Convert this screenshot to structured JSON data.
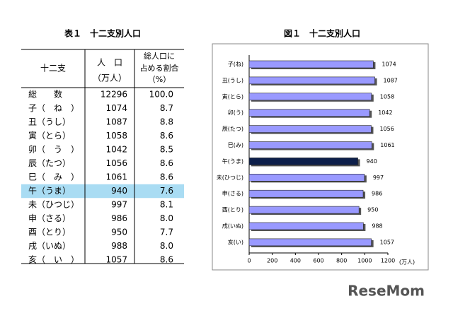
{
  "table": {
    "title": "表１　十二支別人口",
    "headers": [
      "十二支",
      "人　口",
      "（万人）",
      "総人口に",
      "占める割合",
      "（%）"
    ],
    "highlighted_row": 7,
    "rows": [
      [
        "総　　数",
        "12296",
        "100.0"
      ],
      [
        "子（　ね　）",
        "1074",
        "8.7"
      ],
      [
        "丑（うし）",
        "1087",
        "8.8"
      ],
      [
        "寅（とら）",
        "1058",
        "8.6"
      ],
      [
        "卯（　う　）",
        "1042",
        "8.5"
      ],
      [
        "辰（たつ）",
        "1056",
        "8.6"
      ],
      [
        "巳（　み　）",
        "1061",
        "8.6"
      ],
      [
        "午（うま）",
        "940",
        "7.6"
      ],
      [
        "未（ひつじ）",
        "997",
        "8.1"
      ],
      [
        "申（さる）",
        "986",
        "8.0"
      ],
      [
        "酉（とり）",
        "950",
        "7.7"
      ],
      [
        "戌（いぬ）",
        "988",
        "8.0"
      ],
      [
        "亥（　い　）",
        "1057",
        "8.6"
      ]
    ]
  },
  "chart_data": {
    "type": "hbar",
    "title": "図１　十二支別人口",
    "x_label": "(万人)",
    "categories": [
      "子(ね)",
      "丑(うし)",
      "寅(とら)",
      "卯(う)",
      "辰(たつ)",
      "巳(み)",
      "午(うま)",
      "未(ひつじ)",
      "申(さる)",
      "酉(とり)",
      "戌(いぬ)",
      "亥(い)"
    ],
    "values": [
      1074,
      1087,
      1058,
      1042,
      1056,
      1061,
      940,
      997,
      986,
      950,
      988,
      1057
    ],
    "colors": [
      "#9999ff",
      "#9999ff",
      "#9999ff",
      "#9999ff",
      "#9999ff",
      "#9999ff",
      "#0d1f4a",
      "#9999ff",
      "#9999ff",
      "#9999ff",
      "#9999ff",
      "#9999ff"
    ],
    "xlim": [
      0,
      1200
    ],
    "xticks": [
      0,
      200,
      400,
      600,
      800,
      1000,
      1200
    ]
  },
  "watermark": "ReseMom"
}
